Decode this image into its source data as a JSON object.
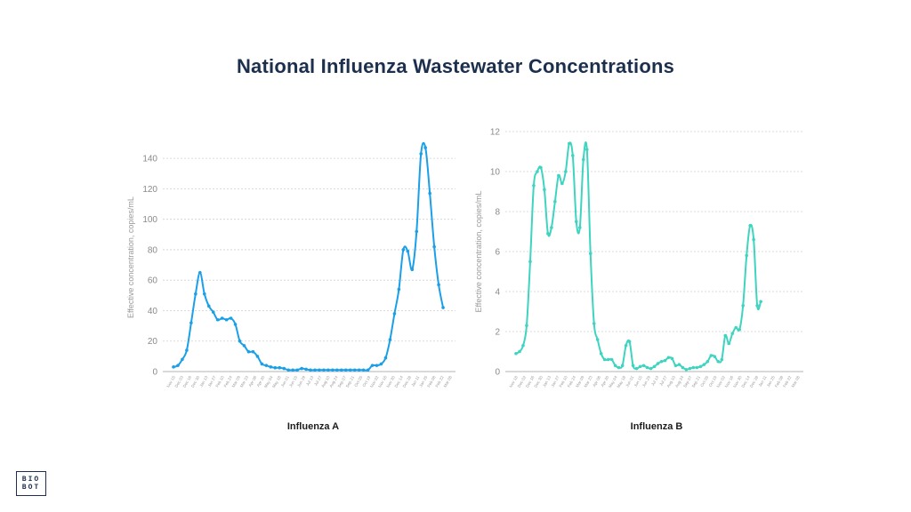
{
  "page": {
    "title": "National Influenza Wastewater Concentrations"
  },
  "logo": {
    "line1": "BIO",
    "line2": "BOT"
  },
  "chart_data": [
    {
      "type": "line",
      "title": "Influenza A",
      "ylabel": "Effective concentration, copies/mL",
      "ylim": [
        0,
        150
      ],
      "yticks": [
        0,
        20,
        40,
        60,
        80,
        100,
        120,
        140
      ],
      "grid": true,
      "color": "#1a9fe8",
      "x": [
        0,
        1,
        2,
        3,
        4,
        5,
        6,
        7,
        8,
        9,
        10,
        11,
        12,
        13,
        14,
        15,
        16,
        17,
        18,
        19,
        20,
        21,
        22,
        23,
        24,
        25,
        26,
        27,
        28,
        29,
        30,
        31,
        32,
        33,
        34,
        35,
        36,
        37,
        38,
        39,
        40,
        41,
        42,
        43,
        44,
        45,
        46,
        47,
        48,
        49,
        50,
        51,
        52,
        53,
        54,
        55,
        56,
        57,
        58,
        59,
        60,
        61,
        62,
        63
      ],
      "values": [
        3,
        4,
        8,
        14,
        32,
        51,
        65,
        51,
        43,
        39,
        34,
        35,
        34,
        35,
        31,
        20,
        17,
        13,
        13,
        10,
        5,
        4,
        3,
        2.5,
        2.5,
        2,
        1,
        1,
        1,
        2,
        1.5,
        1,
        1,
        1,
        1,
        1,
        1,
        1,
        1,
        1,
        1,
        1,
        1,
        1,
        1,
        4,
        4,
        5,
        9,
        21,
        38,
        54,
        80,
        79,
        67,
        92,
        143,
        147,
        117,
        82,
        57,
        42,
        null,
        null
      ],
      "x_tick_labels": [
        "Nov 15",
        "Dec 03",
        "Dec 16",
        "Dec 30",
        "Jan 13",
        "Jan 27",
        "Feb 10",
        "Feb 24",
        "Mar 09",
        "Mar 23",
        "Apr 06",
        "Apr 20",
        "May 04",
        "May 18",
        "Jun 01",
        "Jun 15",
        "Jun 29",
        "Jul 13",
        "Jul 27",
        "Aug 10",
        "Aug 24",
        "Sep 07",
        "Sep 21",
        "Oct 05",
        "Oct 19",
        "Nov 02",
        "Nov 16",
        "Nov 30",
        "Dec 14",
        "Dec 28",
        "Jan 11",
        "Jan 25",
        "Feb 08",
        "Feb 22",
        "Mar 08"
      ]
    },
    {
      "type": "line",
      "title": "Influenza B",
      "ylabel": "Effective concentration, copies/mL",
      "ylim": [
        0,
        12
      ],
      "yticks": [
        0,
        2,
        4,
        6,
        8,
        10,
        12
      ],
      "grid": true,
      "color": "#3ed4c0",
      "x": [
        0,
        1,
        2,
        3,
        4,
        5,
        6,
        7,
        8,
        9,
        10,
        11,
        12,
        13,
        14,
        15,
        16,
        17,
        18,
        19,
        20,
        21,
        22,
        23,
        24,
        25,
        26,
        27,
        28,
        29,
        30,
        31,
        32,
        33,
        34,
        35,
        36,
        37,
        38,
        39,
        40,
        41,
        42,
        43,
        44,
        45,
        46,
        47,
        48,
        49,
        50,
        51,
        52,
        53,
        54,
        55,
        56,
        57,
        58,
        59,
        60,
        61,
        62,
        63,
        64,
        65,
        66,
        67,
        68,
        69,
        70,
        71,
        72,
        73,
        74,
        75,
        76,
        77,
        78,
        79,
        80
      ],
      "values": [
        0.9,
        1.0,
        1.3,
        2.3,
        5.5,
        9.3,
        10.0,
        10.2,
        9.1,
        6.9,
        7.2,
        8.5,
        9.8,
        9.4,
        10.0,
        11.4,
        10.8,
        7.5,
        7.2,
        10.6,
        11.1,
        5.9,
        2.4,
        1.6,
        0.9,
        0.6,
        0.6,
        0.6,
        0.3,
        0.2,
        0.3,
        1.3,
        1.5,
        0.3,
        0.15,
        0.25,
        0.3,
        0.2,
        0.15,
        0.25,
        0.4,
        0.5,
        0.55,
        0.7,
        0.65,
        0.3,
        0.35,
        0.2,
        0.1,
        0.15,
        0.2,
        0.2,
        0.25,
        0.35,
        0.5,
        0.8,
        0.75,
        0.5,
        0.6,
        1.8,
        1.4,
        1.9,
        2.2,
        2.1,
        3.3,
        5.8,
        7.3,
        6.6,
        3.3,
        3.5,
        null,
        null,
        null,
        null,
        null,
        null,
        null,
        null,
        null,
        null,
        null
      ],
      "x_tick_labels": [
        "Nov 18",
        "Dec 02",
        "Dec 16",
        "Dec 30",
        "Jan 13",
        "Jan 27",
        "Feb 10",
        "Feb 24",
        "Mar 09",
        "Mar 23",
        "Apr 06",
        "Apr 20",
        "May 04",
        "May 18",
        "Jun 01",
        "Jun 15",
        "Jun 29",
        "Jul 13",
        "Jul 27",
        "Aug 10",
        "Aug 24",
        "Sep 07",
        "Sep 21",
        "Oct 05",
        "Oct 19",
        "Nov 02",
        "Nov 16",
        "Nov 30",
        "Dec 14",
        "Dec 28",
        "Jan 11",
        "Jan 25",
        "Feb 08",
        "Feb 22",
        "Mar 08"
      ]
    }
  ]
}
